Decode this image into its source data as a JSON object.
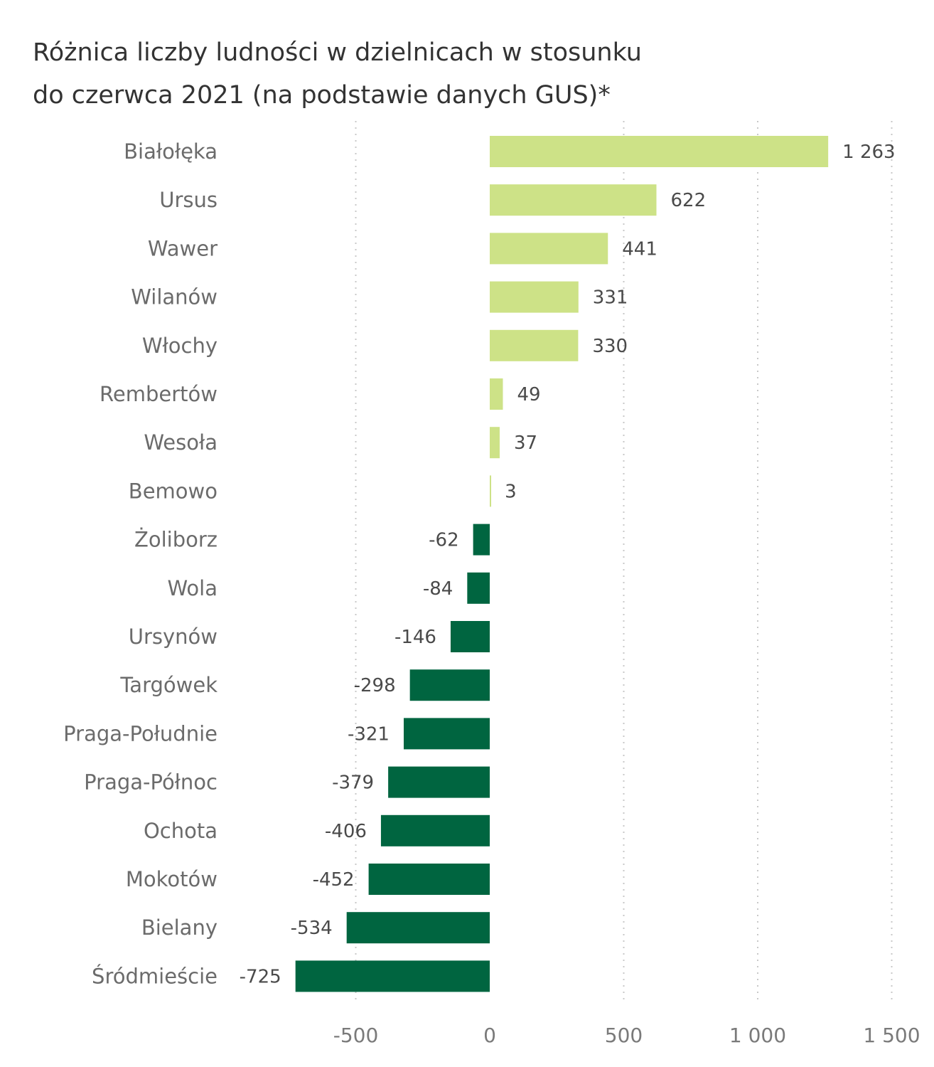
{
  "chart_data": {
    "type": "bar",
    "orientation": "horizontal",
    "title_lines": [
      "Różnica liczby ludności w dzielnicach w stosunku",
      "do czerwca 2021 (na podstawie danych GUS)*"
    ],
    "categories": [
      "Białołęka",
      "Ursus",
      "Wawer",
      "Wilanów",
      "Włochy",
      "Rembertów",
      "Wesoła",
      "Bemowo",
      "Żoliborz",
      "Wola",
      "Ursynów",
      "Targówek",
      "Praga-Południe",
      "Praga-Północ",
      "Ochota",
      "Mokotów",
      "Bielany",
      "Śródmieście"
    ],
    "values": [
      1263,
      622,
      441,
      331,
      330,
      49,
      37,
      3,
      -62,
      -84,
      -146,
      -298,
      -321,
      -379,
      -406,
      -452,
      -534,
      -725
    ],
    "value_labels": [
      "1 263",
      "622",
      "441",
      "331",
      "330",
      "49",
      "37",
      "3",
      "-62",
      "-84",
      "-146",
      "-298",
      "-321",
      "-379",
      "-406",
      "-452",
      "-534",
      "-725"
    ],
    "xlim": [
      -800,
      1500
    ],
    "x_ticks": [
      -500,
      0,
      500,
      1000,
      1500
    ],
    "x_tick_labels": [
      "-500",
      "0",
      "500",
      "1 000",
      "1 500"
    ],
    "grid": true,
    "colors": {
      "positive": "#cde287",
      "negative": "#006540"
    }
  }
}
